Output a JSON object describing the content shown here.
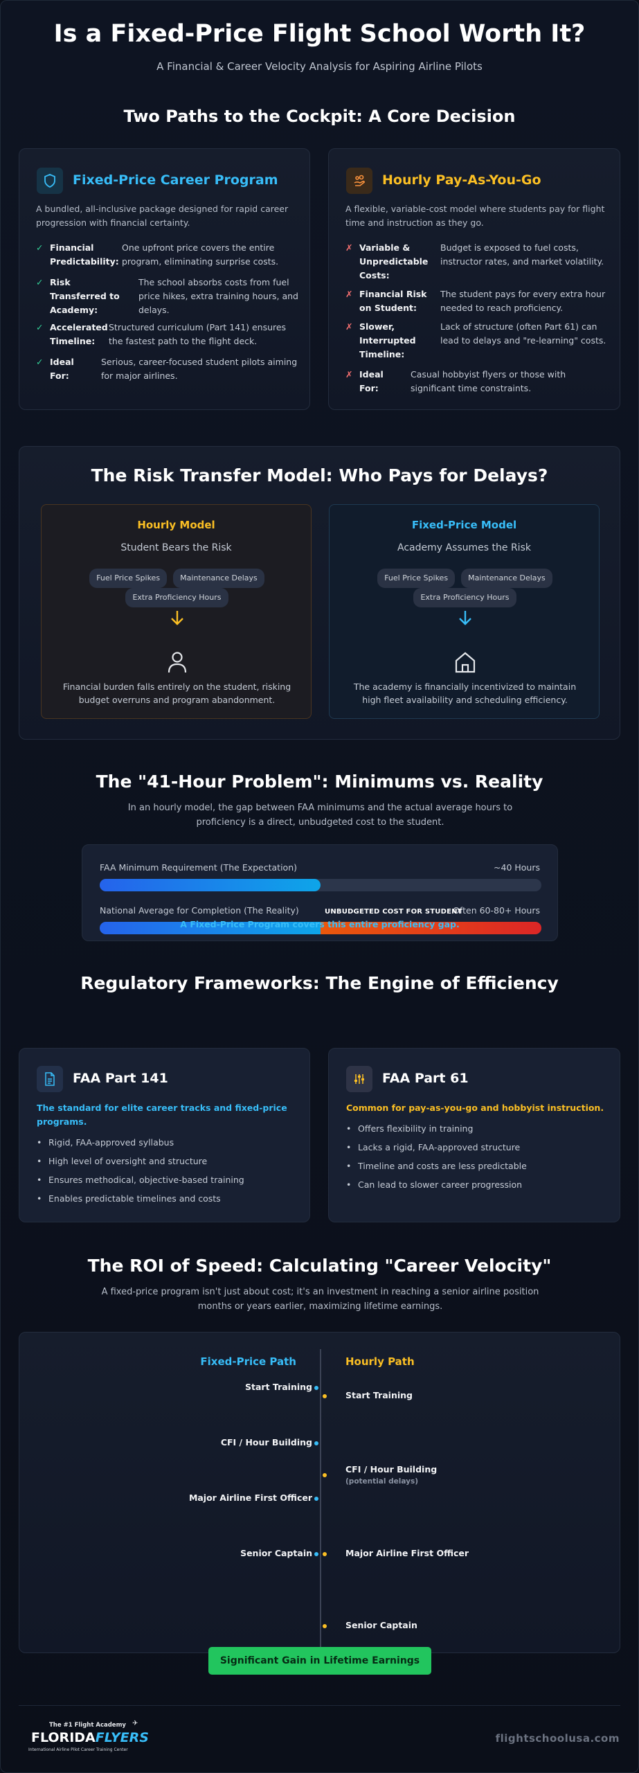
{
  "header": {
    "title": "Is a Fixed-Price Flight School Worth It?",
    "subtitle": "A Financial & Career Velocity Analysis for Aspiring Airline Pilots"
  },
  "paths": {
    "heading": "Two Paths to the Cockpit: A Core Decision",
    "fixed": {
      "icon": "shield-icon",
      "accent": "#38bdf8",
      "title": "Fixed-Price Career Program",
      "desc": "A bundled, all-inclusive package designed for rapid career progression with financial certainty.",
      "features": [
        {
          "label": "Financial Predictability:",
          "text": "One upfront price covers the entire program, eliminating surprise costs."
        },
        {
          "label": "Risk Transferred to Academy:",
          "text": "The school absorbs costs from fuel price hikes, extra training hours, and delays."
        },
        {
          "label": "Accelerated Timeline:",
          "text": "Structured curriculum (Part 141) ensures the fastest path to the flight deck."
        },
        {
          "label": "Ideal For:",
          "text": "Serious, career-focused student pilots aiming for major airlines."
        }
      ]
    },
    "hourly": {
      "icon": "hand-coins-icon",
      "accent": "#fbbf24",
      "title": "Hourly Pay-As-You-Go",
      "desc": "A flexible, variable-cost model where students pay for flight time and instruction as they go.",
      "features": [
        {
          "label": "Variable & Unpredictable Costs:",
          "text": "Budget is exposed to fuel costs, instructor rates, and market volatility."
        },
        {
          "label": "Financial Risk on Student:",
          "text": "The student pays for every extra hour needed to reach proficiency."
        },
        {
          "label": "Slower, Interrupted Timeline:",
          "text": "Lack of structure (often Part 61) can lead to delays and \"re-learning\" costs."
        },
        {
          "label": "Ideal For:",
          "text": "Casual hobbyist flyers or those with significant time constraints."
        }
      ]
    }
  },
  "risk": {
    "heading": "The Risk Transfer Model: Who Pays for Delays?",
    "hourly": {
      "title": "Hourly Model",
      "subtitle": "Student Bears the Risk",
      "tags": [
        "Fuel Price Spikes",
        "Maintenance Delays",
        "Extra Proficiency Hours"
      ],
      "icon": "user-icon",
      "text": "Financial burden falls entirely on the student, risking budget overruns and program abandonment."
    },
    "fixed": {
      "title": "Fixed-Price Model",
      "subtitle": "Academy Assumes the Risk",
      "tags": [
        "Fuel Price Spikes",
        "Maintenance Delays",
        "Extra Proficiency Hours"
      ],
      "icon": "home-icon",
      "text": "The academy is financially incentivized to maintain high fleet availability and scheduling efficiency."
    }
  },
  "gap": {
    "heading": "The \"41-Hour Problem\": Minimums vs. Reality",
    "intro": "In an hourly model, the gap between FAA minimums and the actual average hours to proficiency is a direct, unbudgeted cost to the student.",
    "bars": [
      {
        "label": "FAA Minimum Requirement (The Expectation)",
        "value_text": "~40 Hours",
        "fill_fraction": 0.5
      },
      {
        "label": "National Average for Completion (The Reality)",
        "value_text": "Often 60-80+ Hours",
        "fill_fraction": 1.0,
        "gap_start_fraction": 0.5
      }
    ],
    "gap_label": "UNBUDGETED COST FOR STUDENT",
    "footnote": "A Fixed-Price Program covers this entire proficiency gap."
  },
  "regs": {
    "heading": "Regulatory Frameworks: The Engine of Efficiency",
    "p141": {
      "icon": "document-icon",
      "title": "FAA Part 141",
      "tagline": "The standard for elite career tracks and fixed-price programs.",
      "bullets": [
        "Rigid, FAA-approved syllabus",
        "High level of oversight and structure",
        "Ensures methodical, objective-based training",
        "Enables predictable timelines and costs"
      ]
    },
    "p61": {
      "icon": "sliders-icon",
      "title": "FAA Part 61",
      "tagline": "Common for pay-as-you-go and hobbyist instruction.",
      "bullets": [
        "Offers flexibility in training",
        "Lacks a rigid, FAA-approved structure",
        "Timeline and costs are less predictable",
        "Can lead to slower career progression"
      ]
    }
  },
  "roi": {
    "heading": "The ROI of Speed: Calculating \"Career Velocity\"",
    "intro": "A fixed-price program isn't just about cost; it's an investment in reaching a senior airline position months or years earlier, maximizing lifetime earnings.",
    "fixed_title": "Fixed-Price Path",
    "hourly_title": "Hourly Path",
    "fixed_steps": [
      "Start Training",
      "CFI / Hour Building",
      "Major Airline First Officer",
      "Senior Captain"
    ],
    "hourly_steps": [
      "Start Training",
      "CFI / Hour Building",
      "Major Airline First Officer",
      "Senior Captain"
    ],
    "hourly_note": "(potential delays)",
    "result": "Significant Gain in Lifetime Earnings"
  },
  "footer": {
    "logo_tagline": "The #1 Flight Academy",
    "logo_main": "FLORIDA",
    "logo_accent": "FLYERS",
    "logo_sub": "International Airline Pilot Career Training Center",
    "site": "flightschoolusa.com"
  },
  "colors": {
    "fixed_accent": "#38bdf8",
    "hourly_accent": "#fbbf24",
    "check": "#34d399",
    "cross": "#f87171",
    "result_button": "#22c55e"
  }
}
